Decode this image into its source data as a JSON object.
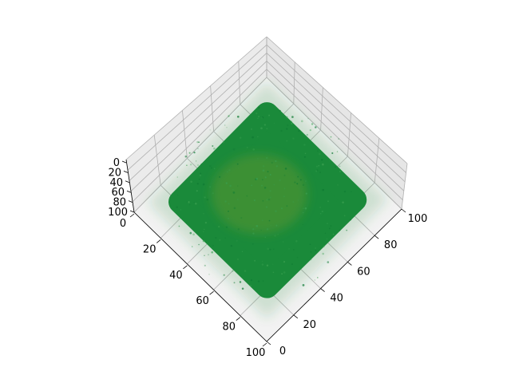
{
  "chart_data": {
    "type": "scatter",
    "projection": "3d",
    "view": "top-down, rotated 45 degrees",
    "title": "",
    "xlabel": "",
    "ylabel": "",
    "zlabel": "",
    "xlim": [
      0,
      100
    ],
    "ylim": [
      0,
      100
    ],
    "zlim": [
      0,
      100
    ],
    "x_ticks": [
      "0",
      "20",
      "40",
      "60",
      "80",
      "100"
    ],
    "y_ticks": [
      "0",
      "20",
      "40",
      "60",
      "80",
      "100"
    ],
    "z_ticks": [
      "0",
      "20",
      "40",
      "60",
      "80",
      "100"
    ],
    "grid": true,
    "series": [
      {
        "marker_color": "#1a8a3a",
        "distribution": "dense point cloud filling a rounded cube",
        "center": [
          50,
          50,
          50
        ],
        "half_extent": 38,
        "center_color": "#7a9a2a"
      }
    ],
    "pane_color": "#f2f2f2"
  }
}
